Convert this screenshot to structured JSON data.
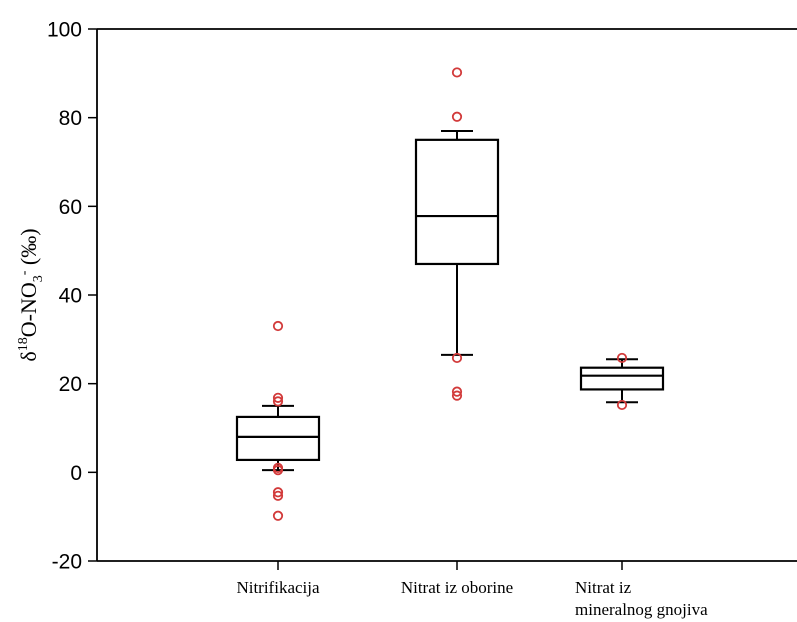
{
  "chart_data": {
    "type": "box",
    "ylabel": {
      "prefix": "δ",
      "sup": "18",
      "mid": "O-NO",
      "sub": "3",
      "sup2": "-",
      "suffix": " (‰)"
    },
    "ylim": [
      -20,
      100
    ],
    "yticks": [
      -20,
      0,
      20,
      40,
      60,
      80,
      100
    ],
    "grid": false,
    "categories": [
      {
        "lines": [
          "Nitrifikacija"
        ]
      },
      {
        "lines": [
          "Nitrat iz oborine"
        ]
      },
      {
        "lines": [
          "Nitrat iz",
          "mineralnog gnojiva"
        ]
      }
    ],
    "boxes": [
      {
        "whisker_low": 0.5,
        "q1": 2.8,
        "median": 8.0,
        "q3": 12.5,
        "whisker_high": 15.0,
        "outliers": [
          33.0,
          16.8,
          16.0,
          1.0,
          0.5,
          -4.5,
          -5.3,
          -9.8
        ]
      },
      {
        "whisker_low": 26.5,
        "q1": 47.0,
        "median": 57.8,
        "q3": 75.0,
        "whisker_high": 77.0,
        "outliers": [
          90.2,
          80.2,
          25.8,
          18.2,
          17.3
        ]
      },
      {
        "whisker_low": 15.8,
        "q1": 18.7,
        "median": 21.8,
        "q3": 23.6,
        "whisker_high": 25.5,
        "outliers": [
          25.8,
          15.2
        ]
      }
    ],
    "colors": {
      "box": "#000000",
      "outlier": "#d23a3a"
    }
  }
}
